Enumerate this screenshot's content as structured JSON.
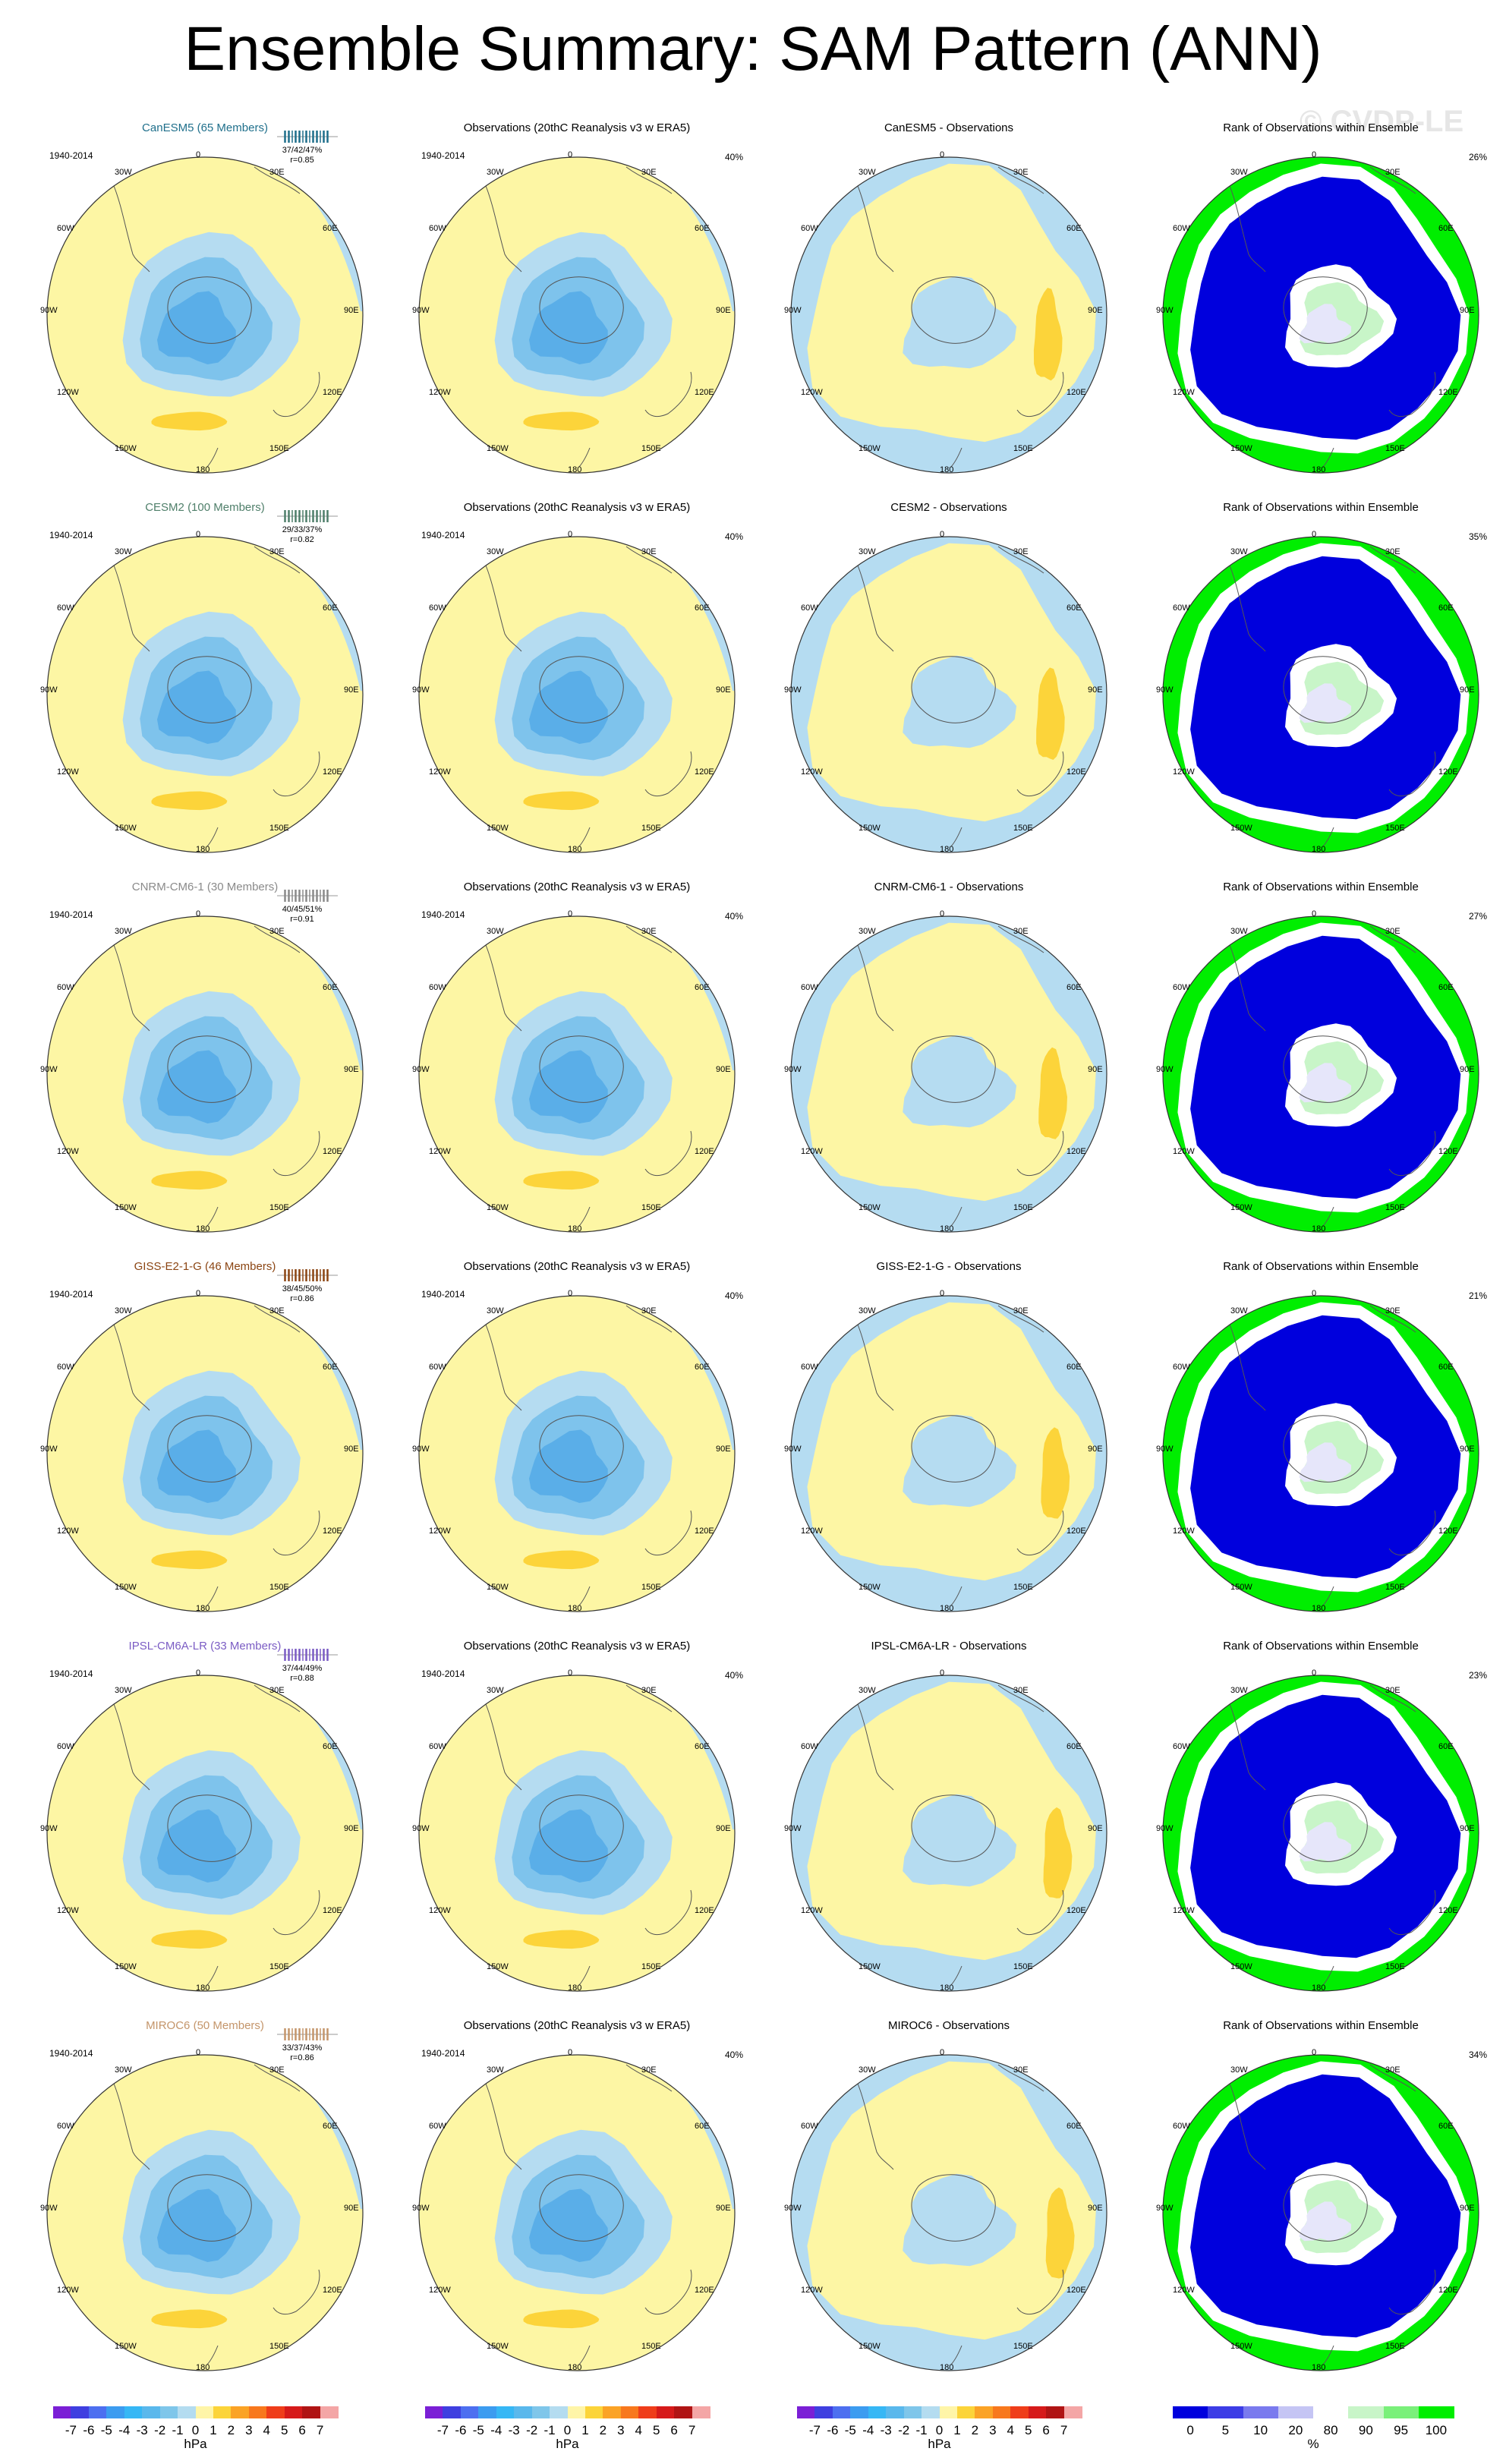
{
  "title": "Ensemble Summary: SAM Pattern (ANN)",
  "watermark": "© CVDP-LE",
  "period": "1940-2014",
  "obs_title": "Observations (20thC Reanalysis v3 w ERA5)",
  "obs_percent": "40%",
  "rank_title": "Rank of Observations within Ensemble",
  "lon_labels": {
    "n0": "0",
    "e30": "30E",
    "e60": "60E",
    "e90": "90E",
    "e120": "120E",
    "e150": "150E",
    "s180": "180",
    "w150": "150W",
    "w120": "120W",
    "w90": "90W",
    "w60": "60W",
    "w30": "30W"
  },
  "models": [
    {
      "title": "CanESM5 (65 Members)",
      "color": "#1f6f8b",
      "stats": "37/42/47%",
      "r": "r=0.85",
      "diff_title": "CanESM5 - Observations",
      "rank_percent": "26%"
    },
    {
      "title": "CESM2 (100 Members)",
      "color": "#4f7f6a",
      "stats": "29/33/37%",
      "r": "r=0.82",
      "diff_title": "CESM2 - Observations",
      "rank_percent": "35%"
    },
    {
      "title": "CNRM-CM6-1 (30 Members)",
      "color": "#8a8a8a",
      "stats": "40/45/51%",
      "r": "r=0.91",
      "diff_title": "CNRM-CM6-1 - Observations",
      "rank_percent": "27%"
    },
    {
      "title": "GISS-E2-1-G (46 Members)",
      "color": "#8b4513",
      "stats": "38/45/50%",
      "r": "r=0.86",
      "diff_title": "GISS-E2-1-G - Observations",
      "rank_percent": "21%"
    },
    {
      "title": "IPSL-CM6A-LR (33 Members)",
      "color": "#7b5cc4",
      "stats": "37/44/49%",
      "r": "r=0.88",
      "diff_title": "IPSL-CM6A-LR - Observations",
      "rank_percent": "23%"
    },
    {
      "title": "MIROC6 (50 Members)",
      "color": "#c4956a",
      "stats": "33/37/43%",
      "r": "r=0.86",
      "diff_title": "MIROC6 - Observations",
      "rank_percent": "34%"
    }
  ],
  "colorbar_hpa": {
    "ticks": [
      "-7",
      "-6",
      "-5",
      "-4",
      "-3",
      "-2",
      "-1",
      "0",
      "1",
      "2",
      "3",
      "4",
      "5",
      "6",
      "7"
    ],
    "unit": "hPa",
    "colors": [
      "#7b1fd6",
      "#3f3fe0",
      "#4d6ff0",
      "#3c9cf0",
      "#36b7f5",
      "#5ab8ec",
      "#7fc6ea",
      "#b4dcf0",
      "#fff5a8",
      "#fcd43a",
      "#fba326",
      "#f8781d",
      "#ef3d1a",
      "#d61a1a",
      "#b01414",
      "#f4a6a6"
    ]
  },
  "colorbar_rank": {
    "ticks": [
      "0",
      "5",
      "10",
      "20",
      "80",
      "90",
      "95",
      "100"
    ],
    "unit": "%",
    "colors": [
      "#0000dd",
      "#3d3de6",
      "#7a7aee",
      "#c5c5f4",
      "#ffffff",
      "#c8f5c8",
      "#7af07a",
      "#00ee00"
    ]
  }
}
